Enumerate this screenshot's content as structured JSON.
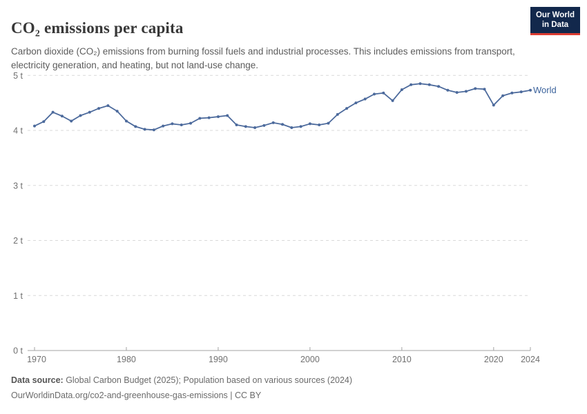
{
  "header": {
    "title": "CO₂ emissions per capita",
    "subtitle": "Carbon dioxide (CO₂) emissions from burning fossil fuels and industrial processes. This includes emissions from transport, electricity generation, and heating, but not land-use change."
  },
  "logo": {
    "line1": "Our World",
    "line2": "in Data",
    "bg_color": "#12284c",
    "accent_color": "#dc3c32"
  },
  "chart_data": {
    "type": "line",
    "title": "CO₂ emissions per capita",
    "xlabel": "",
    "ylabel": "",
    "unit": "t",
    "xlim": [
      1970,
      2024
    ],
    "ylim": [
      0,
      5
    ],
    "grid": "horizontal-dashed",
    "legend_position": "end-of-line",
    "x_ticks": [
      1970,
      1980,
      1990,
      2000,
      2010,
      2020,
      2024
    ],
    "y_ticks": [
      "0 t",
      "1 t",
      "2 t",
      "3 t",
      "4 t",
      "5 t"
    ],
    "series": [
      {
        "name": "World",
        "color": "#4c6a9c",
        "label_color": "#3d649d",
        "x": [
          1970,
          1971,
          1972,
          1973,
          1974,
          1975,
          1976,
          1977,
          1978,
          1979,
          1980,
          1981,
          1982,
          1983,
          1984,
          1985,
          1986,
          1987,
          1988,
          1989,
          1990,
          1991,
          1992,
          1993,
          1994,
          1995,
          1996,
          1997,
          1998,
          1999,
          2000,
          2001,
          2002,
          2003,
          2004,
          2005,
          2006,
          2007,
          2008,
          2009,
          2010,
          2011,
          2012,
          2013,
          2014,
          2015,
          2016,
          2017,
          2018,
          2019,
          2020,
          2021,
          2022,
          2023,
          2024
        ],
        "values": [
          4.08,
          4.16,
          4.33,
          4.26,
          4.17,
          4.27,
          4.33,
          4.4,
          4.45,
          4.35,
          4.17,
          4.07,
          4.02,
          4.01,
          4.08,
          4.12,
          4.1,
          4.13,
          4.22,
          4.23,
          4.25,
          4.27,
          4.1,
          4.07,
          4.05,
          4.09,
          4.14,
          4.11,
          4.05,
          4.07,
          4.12,
          4.1,
          4.13,
          4.29,
          4.4,
          4.5,
          4.57,
          4.66,
          4.68,
          4.54,
          4.74,
          4.83,
          4.85,
          4.83,
          4.8,
          4.73,
          4.69,
          4.71,
          4.76,
          4.75,
          4.46,
          4.63,
          4.68,
          4.7,
          4.73
        ]
      }
    ],
    "style": {
      "gridline_color": "#d9d9d9",
      "axis_color": "#a3a3a3",
      "tick_label_color": "#707070"
    }
  },
  "footer": {
    "datasource_label": "Data source:",
    "datasource_text": " Global Carbon Budget (2025); Population based on various sources (2024)",
    "link_text": "OurWorldinData.org/co2-and-greenhouse-gas-emissions | CC BY"
  }
}
